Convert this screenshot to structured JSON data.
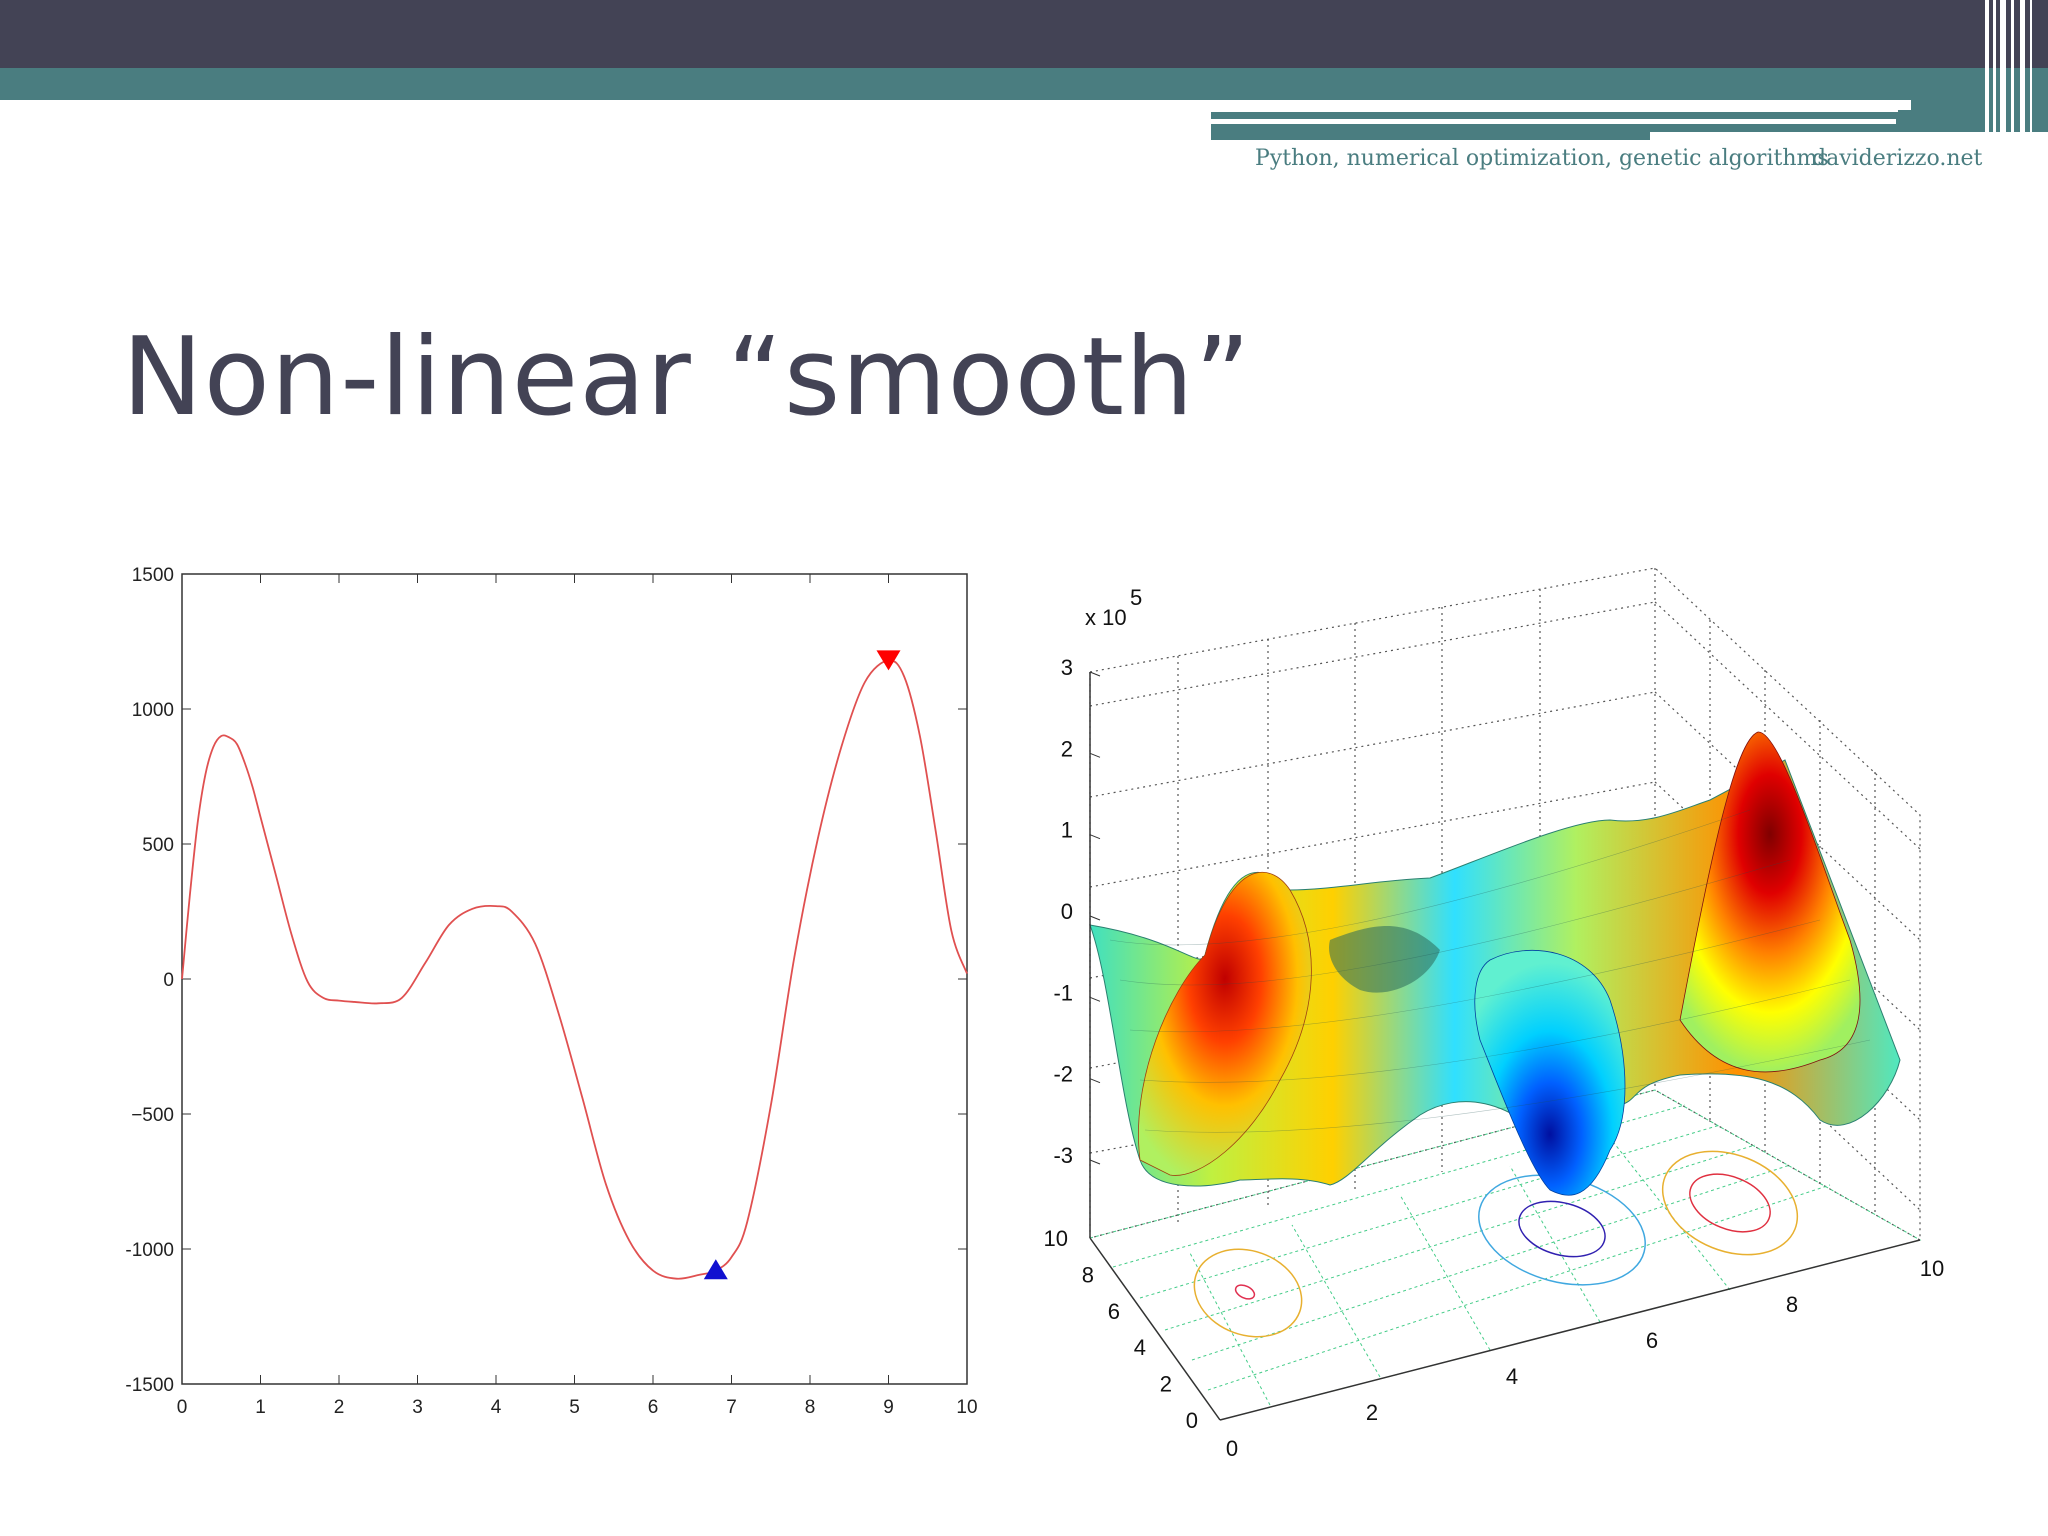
{
  "header": {
    "subtitle": "Python, numerical optimization, genetic algorithms",
    "site": "daviderizzo.net"
  },
  "slide": {
    "title": "Non-linear “smooth”"
  },
  "colors": {
    "header_dark": "#434355",
    "header_teal": "#4a7d80",
    "curve": "#e05050",
    "max_marker": "#ff0000",
    "min_marker": "#1010d0"
  },
  "chart_data": [
    {
      "type": "line",
      "title": "",
      "xlabel": "",
      "ylabel": "",
      "xlim": [
        0,
        10
      ],
      "ylim": [
        -1500,
        1500
      ],
      "xticks": [
        "0",
        "1",
        "2",
        "3",
        "4",
        "5",
        "6",
        "7",
        "8",
        "9",
        "10"
      ],
      "yticks": [
        "1500",
        "1000",
        "500",
        "0",
        "−500",
        "-1000",
        "-1500"
      ],
      "series": [
        {
          "x": [
            0,
            0.1,
            0.2,
            0.3,
            0.4,
            0.5,
            0.6,
            0.7,
            0.8,
            0.9,
            1.0,
            1.2,
            1.4,
            1.6,
            1.8,
            2.0,
            2.2,
            2.5,
            2.8,
            3.1,
            3.4,
            3.7,
            4.0,
            4.2,
            4.5,
            4.8,
            5.1,
            5.4,
            5.7,
            6.0,
            6.3,
            6.6,
            6.8,
            7.0,
            7.2,
            7.5,
            7.8,
            8.1,
            8.4,
            8.7,
            9.0,
            9.2,
            9.4,
            9.6,
            9.8,
            10.0
          ],
          "y": [
            0,
            310,
            580,
            760,
            860,
            900,
            895,
            870,
            800,
            710,
            600,
            380,
            160,
            -10,
            -70,
            -80,
            -85,
            -90,
            -70,
            60,
            200,
            260,
            270,
            250,
            130,
            -130,
            -440,
            -760,
            -970,
            -1080,
            -1110,
            -1095,
            -1080,
            -1030,
            -900,
            -470,
            80,
            520,
            860,
            1100,
            1180,
            1120,
            900,
            550,
            180,
            20
          ]
        }
      ],
      "markers": [
        {
          "shape": "down-triangle",
          "x": 9.0,
          "y": 1180,
          "color": "#ff0000"
        },
        {
          "shape": "up-triangle",
          "x": 6.8,
          "y": -1075,
          "color": "#1010d0"
        }
      ]
    },
    {
      "type": "surface",
      "xlim": [
        0,
        10
      ],
      "ylim": [
        0,
        10
      ],
      "zlim": [
        -3,
        3
      ],
      "z_multiplier": "x 10",
      "z_exponent": "5",
      "xticks": [
        "0",
        "2",
        "4",
        "6",
        "8",
        "10"
      ],
      "yticks": [
        "0",
        "2",
        "4",
        "6",
        "8",
        "10"
      ],
      "zticks": [
        "3",
        "2",
        "1",
        "0",
        "-1",
        "-2",
        "-3"
      ]
    }
  ]
}
